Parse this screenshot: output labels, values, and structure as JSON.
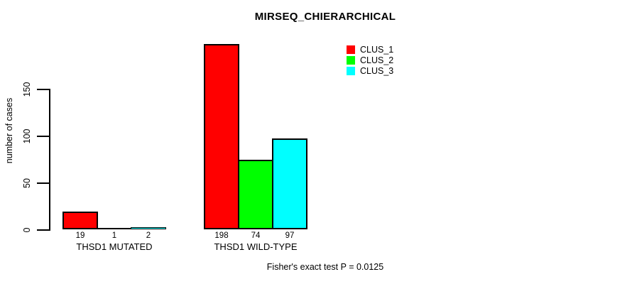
{
  "title": "MIRSEQ_CHIERARCHICAL",
  "chart_data": {
    "type": "bar",
    "title": "MIRSEQ_CHIERARCHICAL",
    "xlabel": "",
    "ylabel": "number of cases",
    "ylim": [
      0,
      150
    ],
    "yticks": [
      0,
      50,
      100,
      150
    ],
    "grid": false,
    "legend_position": "top-right",
    "categories": [
      "THSD1 MUTATED",
      "THSD1 WILD-TYPE"
    ],
    "series": [
      {
        "name": "CLUS_1",
        "color": "#ff0000",
        "values": [
          19,
          198
        ]
      },
      {
        "name": "CLUS_2",
        "color": "#00ff00",
        "values": [
          1,
          74
        ]
      },
      {
        "name": "CLUS_3",
        "color": "#00ffff",
        "values": [
          2,
          97
        ]
      }
    ],
    "bar_value_labels": [
      [
        "19",
        "1",
        "2"
      ],
      [
        "198",
        "74",
        "97"
      ]
    ],
    "axis_color": "#000000",
    "background_color": "#ffffff"
  },
  "footer": {
    "note": "Fisher's exact test P = 0.0125"
  }
}
